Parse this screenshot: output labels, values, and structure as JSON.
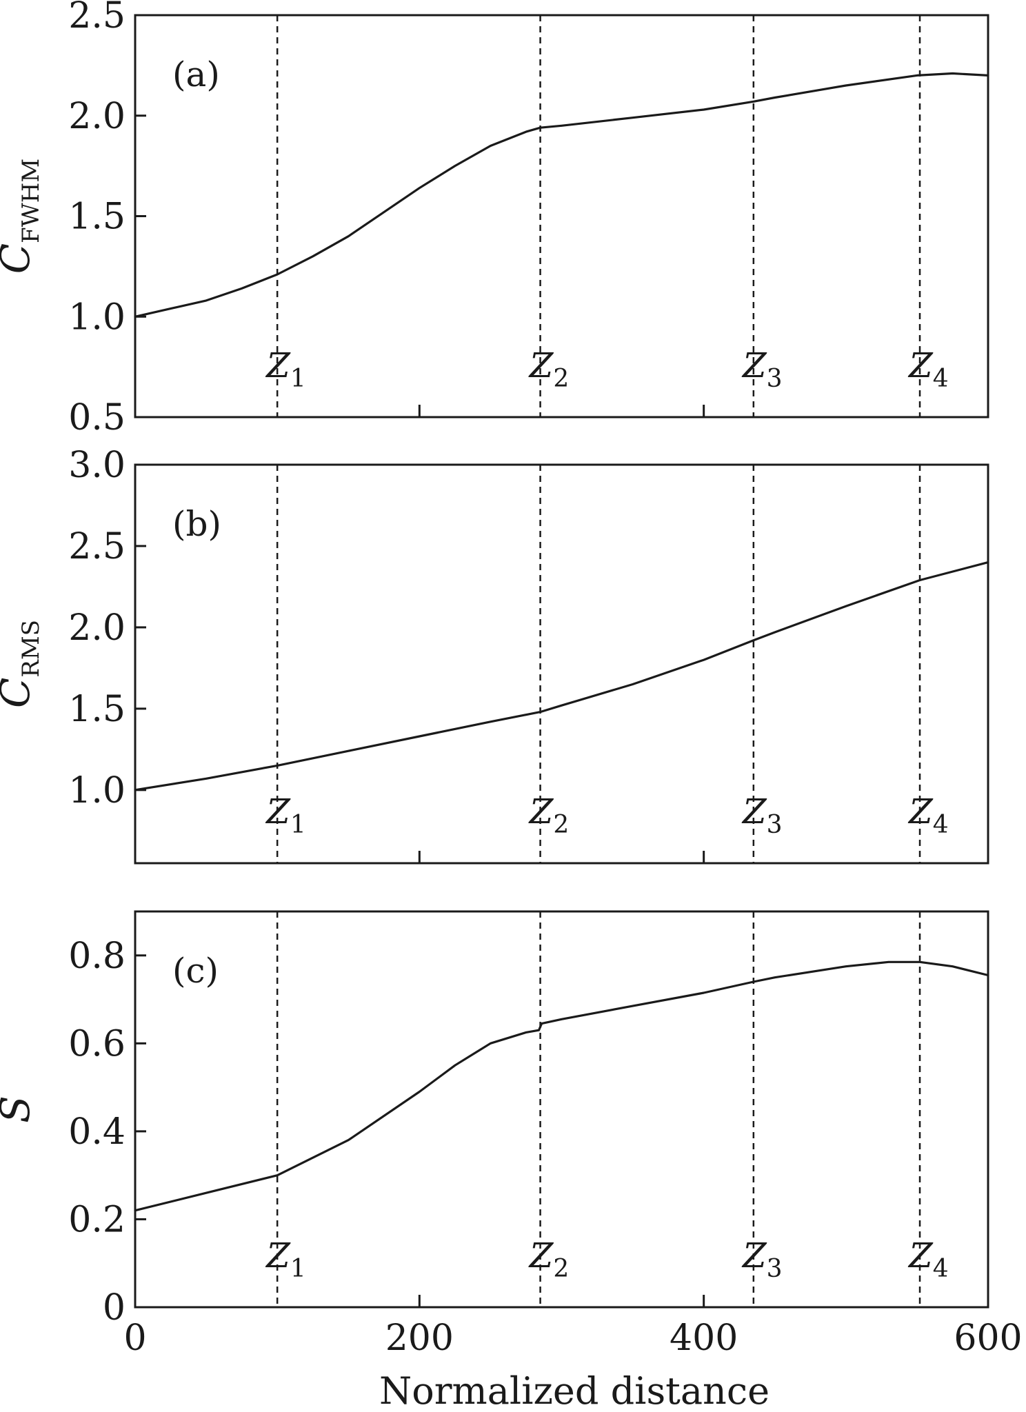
{
  "chart_data": [
    {
      "type": "line",
      "panel_label": "(a)",
      "ylabel_main": "C",
      "ylabel_sub": "FWHM",
      "xlim": [
        0,
        600
      ],
      "ylim": [
        0.5,
        2.5
      ],
      "yticks": [
        0.5,
        1.0,
        1.5,
        2.0,
        2.5
      ],
      "ytick_labels": [
        "0.5",
        "1.0",
        "1.5",
        "2.0",
        "2.5"
      ],
      "xticks": [
        0,
        200,
        400,
        600
      ],
      "xtick_labels": [],
      "grid": false,
      "series": [
        {
          "x": [
            0,
            25,
            50,
            75,
            100,
            125,
            150,
            175,
            200,
            225,
            250,
            275,
            285,
            300,
            350,
            400,
            435,
            450,
            500,
            550,
            575,
            600
          ],
          "y": [
            1.0,
            1.04,
            1.08,
            1.14,
            1.21,
            1.3,
            1.4,
            1.52,
            1.64,
            1.75,
            1.85,
            1.92,
            1.94,
            1.95,
            1.99,
            2.03,
            2.07,
            2.09,
            2.15,
            2.2,
            2.21,
            2.2
          ]
        }
      ],
      "markers": [
        {
          "x": 100,
          "label": "Z",
          "sub": "1"
        },
        {
          "x": 285,
          "label": "Z",
          "sub": "2"
        },
        {
          "x": 435,
          "label": "Z",
          "sub": "3"
        },
        {
          "x": 552,
          "label": "Z",
          "sub": "4"
        }
      ]
    },
    {
      "type": "line",
      "panel_label": "(b)",
      "ylabel_main": "C",
      "ylabel_sub": "RMS",
      "xlim": [
        0,
        600
      ],
      "ylim": [
        0.55,
        3.0
      ],
      "yticks": [
        1.0,
        1.5,
        2.0,
        2.5,
        3.0
      ],
      "ytick_labels": [
        "1.0",
        "1.5",
        "2.0",
        "2.5",
        "3.0"
      ],
      "xticks": [
        0,
        200,
        400,
        600
      ],
      "xtick_labels": [],
      "grid": false,
      "series": [
        {
          "x": [
            0,
            50,
            100,
            150,
            200,
            250,
            285,
            300,
            350,
            400,
            435,
            450,
            500,
            552,
            600
          ],
          "y": [
            1.0,
            1.07,
            1.15,
            1.24,
            1.33,
            1.42,
            1.48,
            1.52,
            1.65,
            1.8,
            1.92,
            1.97,
            2.13,
            2.29,
            2.4
          ]
        }
      ],
      "markers": [
        {
          "x": 100,
          "label": "Z",
          "sub": "1"
        },
        {
          "x": 285,
          "label": "Z",
          "sub": "2"
        },
        {
          "x": 435,
          "label": "Z",
          "sub": "3"
        },
        {
          "x": 552,
          "label": "Z",
          "sub": "4"
        }
      ]
    },
    {
      "type": "line",
      "panel_label": "(c)",
      "ylabel_main": "S",
      "ylabel_sub": "",
      "xlabel": "Normalized distance",
      "xlim": [
        0,
        600
      ],
      "ylim": [
        0,
        0.9
      ],
      "yticks": [
        0,
        0.2,
        0.4,
        0.6,
        0.8
      ],
      "ytick_labels": [
        "0",
        "0.2",
        "0.4",
        "0.6",
        "0.8"
      ],
      "xticks": [
        0,
        200,
        400,
        600
      ],
      "xtick_labels": [
        "0",
        "200",
        "400",
        "600"
      ],
      "grid": false,
      "series": [
        {
          "x": [
            0,
            50,
            100,
            150,
            200,
            225,
            250,
            275,
            284,
            286,
            300,
            350,
            400,
            435,
            450,
            500,
            530,
            552,
            575,
            600
          ],
          "y": [
            0.22,
            0.26,
            0.3,
            0.38,
            0.49,
            0.55,
            0.6,
            0.625,
            0.63,
            0.645,
            0.655,
            0.685,
            0.715,
            0.74,
            0.75,
            0.775,
            0.785,
            0.785,
            0.775,
            0.755
          ]
        }
      ],
      "markers": [
        {
          "x": 100,
          "label": "Z",
          "sub": "1"
        },
        {
          "x": 285,
          "label": "Z",
          "sub": "2"
        },
        {
          "x": 435,
          "label": "Z",
          "sub": "3"
        },
        {
          "x": 552,
          "label": "Z",
          "sub": "4"
        }
      ]
    }
  ],
  "colors": {
    "ink": "#1a1a1a",
    "background": "#ffffff"
  }
}
